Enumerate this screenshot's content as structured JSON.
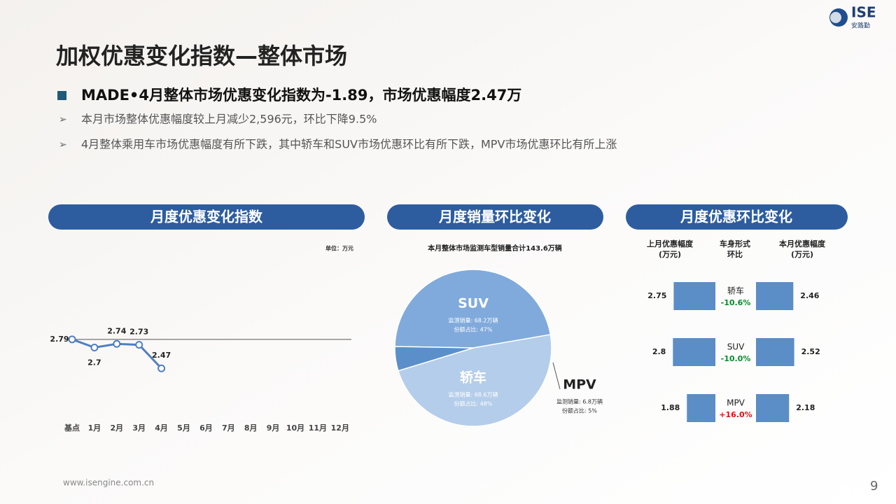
{
  "header": {
    "title": "加权优惠变化指数—整体市场",
    "logo": "ISE",
    "logo_sub": "安路勤"
  },
  "bullets": {
    "main": "MADE•4月整体市场优惠变化指数为-1.89，市场优惠幅度2.47万",
    "items": [
      "本月市场整体优惠幅度较上月减少2,596元，环比下降9.5%",
      "4月整体乘用车市场优惠幅度有所下跌，其中轿车和SUV市场优惠环比有所下跌，MPV市场优惠环比有所上涨"
    ]
  },
  "panels": [
    "月度优惠变化指数",
    "月度销量环比变化",
    "月度优惠环比变化"
  ],
  "chart_data": [
    {
      "type": "line",
      "unit": "单位：万元",
      "categories": [
        "基点",
        "1月",
        "2月",
        "3月",
        "4月",
        "5月",
        "6月",
        "7月",
        "8月",
        "9月",
        "10月",
        "11月",
        "12月"
      ],
      "values": [
        2.79,
        2.7,
        2.74,
        2.73,
        2.47,
        null,
        null,
        null,
        null,
        null,
        null,
        null,
        null
      ],
      "color": "#4f7fbf",
      "ylim": [
        1.9,
        3.6
      ]
    },
    {
      "type": "pie",
      "title": "本月整体市场监测车型销量合计143.6万辆",
      "categories": [
        "SUV",
        "轿车",
        "MPV"
      ],
      "values": [
        47,
        48,
        5
      ],
      "value_labels": [
        "份额占比: 47%",
        "份额占比: 48%",
        "份额占比: 5%"
      ],
      "sales_labels": [
        "监测销量: 68.2万辆",
        "监测销量: 68.6万辆",
        "监测销量: 6.8万辆"
      ],
      "colors": [
        "#80aadb",
        "#b4cdea",
        "#5b8fca"
      ]
    },
    {
      "type": "bar",
      "categories": [
        "轿车",
        "SUV",
        "MPV"
      ],
      "header_mid": [
        "车身形式",
        "环比"
      ],
      "unit": "(万元)",
      "series": [
        {
          "name": "上月优惠幅度",
          "color": "#5b8dc6",
          "values": [
            2.75,
            2.8,
            1.88
          ]
        },
        {
          "name": "本月优惠幅度",
          "color": "#5b8dc6",
          "values": [
            2.46,
            2.52,
            2.18
          ]
        }
      ],
      "change": [
        -10.6,
        -10.0,
        16.0
      ],
      "change_labels": [
        "-10.6%",
        "-10.0%",
        "+16.0%"
      ],
      "xlim": [
        0,
        3
      ]
    }
  ],
  "footer": {
    "url": "www.isengine.com.cn",
    "page": "9"
  }
}
